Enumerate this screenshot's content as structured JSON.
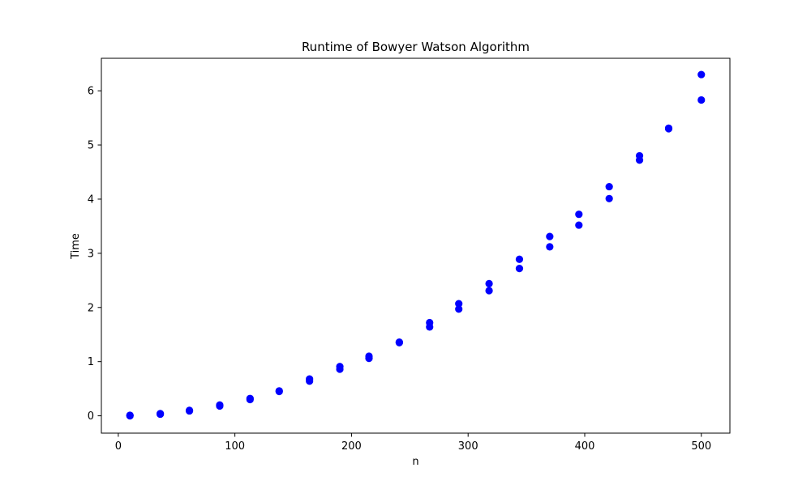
{
  "chart_data": {
    "type": "scatter",
    "title": "Runtime of Bowyer Watson Algorithm",
    "xlabel": "n",
    "ylabel": "Time",
    "xlim": [
      -14.5,
      524.5
    ],
    "ylim": [
      -0.32,
      6.6
    ],
    "x_ticks": [
      0,
      100,
      200,
      300,
      400,
      500
    ],
    "y_ticks": [
      0,
      1,
      2,
      3,
      4,
      5,
      6
    ],
    "grid": false,
    "marker_color": "#0000ff",
    "series": [
      {
        "points": [
          {
            "x": 10,
            "y": 0.0
          },
          {
            "x": 10,
            "y": 0.01
          },
          {
            "x": 36,
            "y": 0.03
          },
          {
            "x": 36,
            "y": 0.04
          },
          {
            "x": 61,
            "y": 0.09
          },
          {
            "x": 61,
            "y": 0.1
          },
          {
            "x": 87,
            "y": 0.18
          },
          {
            "x": 87,
            "y": 0.2
          },
          {
            "x": 113,
            "y": 0.3
          },
          {
            "x": 113,
            "y": 0.32
          },
          {
            "x": 138,
            "y": 0.45
          },
          {
            "x": 138,
            "y": 0.46
          },
          {
            "x": 164,
            "y": 0.64
          },
          {
            "x": 164,
            "y": 0.68
          },
          {
            "x": 190,
            "y": 0.86
          },
          {
            "x": 190,
            "y": 0.91
          },
          {
            "x": 215,
            "y": 1.06
          },
          {
            "x": 215,
            "y": 1.1
          },
          {
            "x": 241,
            "y": 1.35
          },
          {
            "x": 241,
            "y": 1.36
          },
          {
            "x": 267,
            "y": 1.64
          },
          {
            "x": 267,
            "y": 1.72
          },
          {
            "x": 292,
            "y": 1.97
          },
          {
            "x": 292,
            "y": 2.07
          },
          {
            "x": 318,
            "y": 2.31
          },
          {
            "x": 318,
            "y": 2.44
          },
          {
            "x": 344,
            "y": 2.72
          },
          {
            "x": 344,
            "y": 2.89
          },
          {
            "x": 370,
            "y": 3.12
          },
          {
            "x": 370,
            "y": 3.31
          },
          {
            "x": 395,
            "y": 3.52
          },
          {
            "x": 395,
            "y": 3.72
          },
          {
            "x": 421,
            "y": 4.01
          },
          {
            "x": 421,
            "y": 4.23
          },
          {
            "x": 447,
            "y": 4.72
          },
          {
            "x": 447,
            "y": 4.8
          },
          {
            "x": 472,
            "y": 5.3
          },
          {
            "x": 472,
            "y": 5.31
          },
          {
            "x": 500,
            "y": 5.83
          },
          {
            "x": 500,
            "y": 6.3
          }
        ]
      }
    ]
  }
}
